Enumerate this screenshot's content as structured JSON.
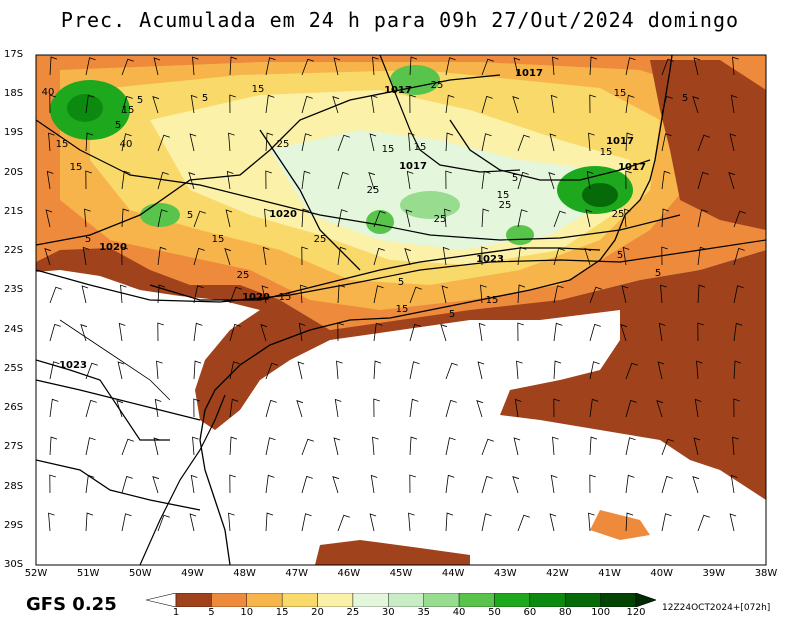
{
  "title": "Prec. Acumulada em 24 h para 09h 27/Out/2024 domingo",
  "model": "GFS 0.25",
  "run_info": "12Z24OCT2024+[072h]",
  "latitude_labels": [
    "17S",
    "18S",
    "19S",
    "20S",
    "21S",
    "22S",
    "23S",
    "24S",
    "25S",
    "26S",
    "27S",
    "28S",
    "29S",
    "30S"
  ],
  "longitude_labels": [
    "52W",
    "51W",
    "50W",
    "49W",
    "48W",
    "47W",
    "46W",
    "45W",
    "44W",
    "43W",
    "42W",
    "41W",
    "40W",
    "39W",
    "38W"
  ],
  "colorbar": {
    "ticks": [
      "1",
      "5",
      "10",
      "15",
      "20",
      "25",
      "30",
      "35",
      "40",
      "50",
      "60",
      "80",
      "100",
      "120"
    ],
    "colors": [
      "#ffffff",
      "#a0421c",
      "#ee8a3c",
      "#f7b44a",
      "#f9d96a",
      "#fbf1a8",
      "#e4f6dc",
      "#c8ecc4",
      "#98dc90",
      "#58c44c",
      "#1ea81e",
      "#0c8a10",
      "#066a08",
      "#034404",
      "#012a02"
    ]
  },
  "pressure_labels": [
    "1017",
    "1017",
    "1017",
    "1017",
    "1017",
    "1020",
    "1020",
    "1020",
    "1023",
    "1023"
  ],
  "precip_labels": [
    "40",
    "15",
    "5",
    "5",
    "15",
    "25",
    "15",
    "40",
    "15",
    "15",
    "25",
    "25",
    "5",
    "25",
    "15",
    "15",
    "25",
    "5",
    "15",
    "25",
    "5",
    "15",
    "5",
    "15",
    "25",
    "25",
    "5",
    "15",
    "5",
    "15",
    "5",
    "15",
    "5",
    "5"
  ]
}
